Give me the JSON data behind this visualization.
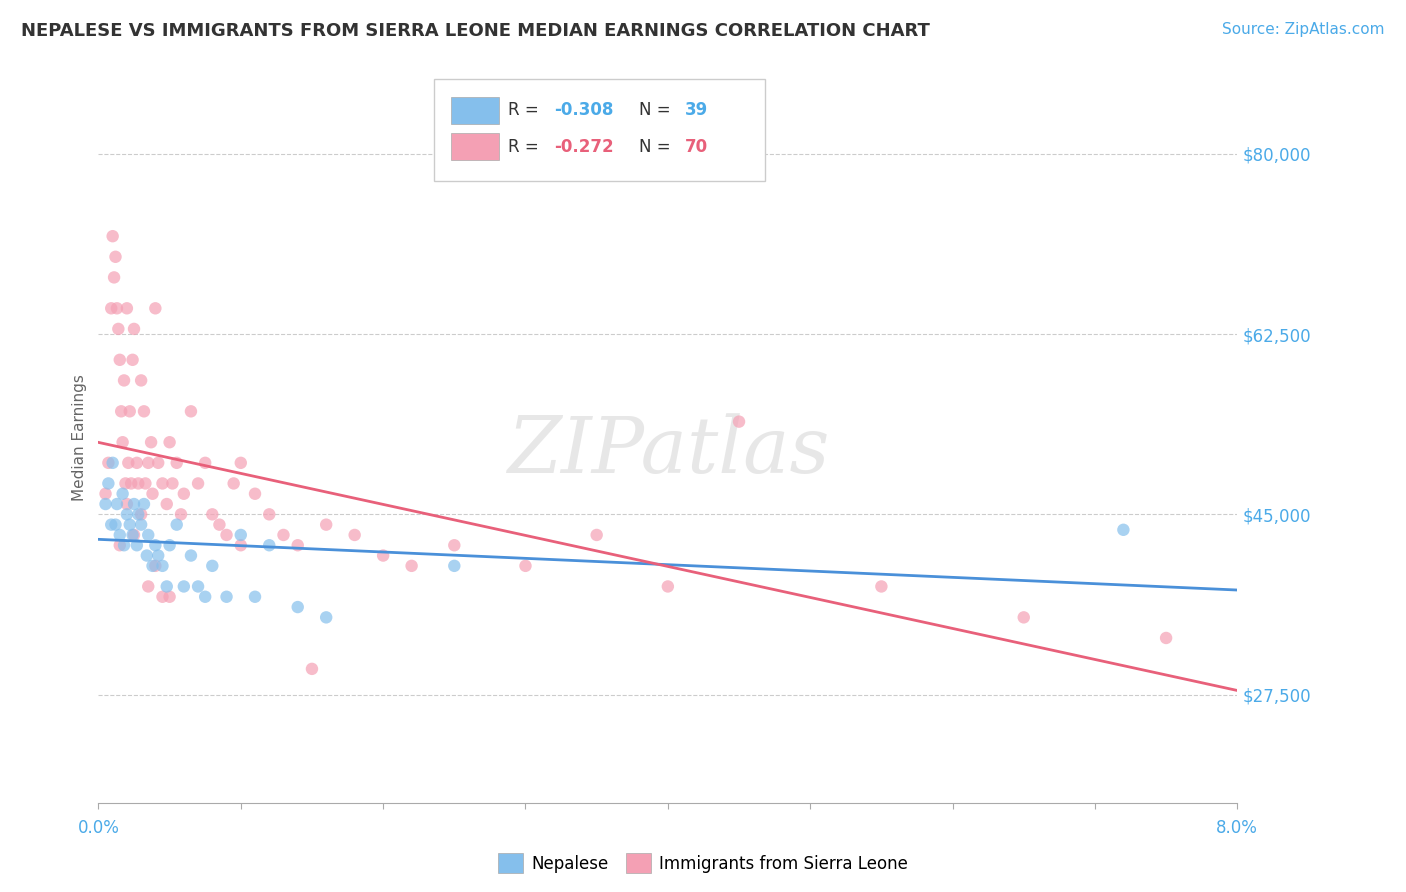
{
  "title": "NEPALESE VS IMMIGRANTS FROM SIERRA LEONE MEDIAN EARNINGS CORRELATION CHART",
  "source": "Source: ZipAtlas.com",
  "ylabel": "Median Earnings",
  "watermark": "ZIPatlas",
  "legend_r1": "-0.308",
  "legend_n1": "39",
  "legend_r2": "-0.272",
  "legend_n2": "70",
  "xlim": [
    0.0,
    8.0
  ],
  "yticks": [
    27500,
    45000,
    62500,
    80000
  ],
  "ytick_labels": [
    "$27,500",
    "$45,000",
    "$62,500",
    "$80,000"
  ],
  "xticks": [
    0.0,
    1.0,
    2.0,
    3.0,
    4.0,
    5.0,
    6.0,
    7.0,
    8.0
  ],
  "color_nepalese": "#85BFEC",
  "color_sierra": "#F4A0B4",
  "color_line_nepalese": "#4A90D9",
  "color_line_sierra": "#E8607A",
  "background": "#FFFFFF",
  "nepalese_x": [
    0.05,
    0.07,
    0.09,
    0.1,
    0.12,
    0.13,
    0.15,
    0.17,
    0.18,
    0.2,
    0.22,
    0.24,
    0.25,
    0.27,
    0.28,
    0.3,
    0.32,
    0.34,
    0.35,
    0.38,
    0.4,
    0.42,
    0.45,
    0.48,
    0.5,
    0.55,
    0.6,
    0.65,
    0.7,
    0.75,
    0.8,
    0.9,
    1.0,
    1.1,
    1.2,
    1.4,
    1.6,
    2.5,
    7.2
  ],
  "nepalese_y": [
    46000,
    48000,
    44000,
    50000,
    44000,
    46000,
    43000,
    47000,
    42000,
    45000,
    44000,
    43000,
    46000,
    42000,
    45000,
    44000,
    46000,
    41000,
    43000,
    40000,
    42000,
    41000,
    40000,
    38000,
    42000,
    44000,
    38000,
    41000,
    38000,
    37000,
    40000,
    37000,
    43000,
    37000,
    42000,
    36000,
    35000,
    40000,
    43500
  ],
  "sierra_x": [
    0.05,
    0.07,
    0.09,
    0.1,
    0.11,
    0.12,
    0.13,
    0.14,
    0.15,
    0.16,
    0.17,
    0.18,
    0.19,
    0.2,
    0.21,
    0.22,
    0.23,
    0.24,
    0.25,
    0.27,
    0.28,
    0.3,
    0.32,
    0.33,
    0.35,
    0.37,
    0.38,
    0.4,
    0.42,
    0.45,
    0.48,
    0.5,
    0.52,
    0.55,
    0.58,
    0.6,
    0.65,
    0.7,
    0.75,
    0.8,
    0.85,
    0.9,
    0.95,
    1.0,
    1.1,
    1.2,
    1.3,
    1.4,
    1.6,
    1.8,
    2.0,
    2.2,
    2.5,
    3.0,
    3.5,
    4.0,
    4.5,
    5.5,
    6.5,
    7.5,
    0.15,
    0.2,
    0.25,
    0.3,
    0.35,
    0.4,
    0.45,
    0.5,
    1.0,
    1.5
  ],
  "sierra_y": [
    47000,
    50000,
    65000,
    72000,
    68000,
    70000,
    65000,
    63000,
    60000,
    55000,
    52000,
    58000,
    48000,
    65000,
    50000,
    55000,
    48000,
    60000,
    63000,
    50000,
    48000,
    58000,
    55000,
    48000,
    50000,
    52000,
    47000,
    65000,
    50000,
    48000,
    46000,
    52000,
    48000,
    50000,
    45000,
    47000,
    55000,
    48000,
    50000,
    45000,
    44000,
    43000,
    48000,
    50000,
    47000,
    45000,
    43000,
    42000,
    44000,
    43000,
    41000,
    40000,
    42000,
    40000,
    43000,
    38000,
    54000,
    38000,
    35000,
    33000,
    42000,
    46000,
    43000,
    45000,
    38000,
    40000,
    37000,
    37000,
    42000,
    30000
  ],
  "title_fontsize": 13,
  "source_fontsize": 11,
  "axis_label_fontsize": 11,
  "tick_fontsize": 12
}
